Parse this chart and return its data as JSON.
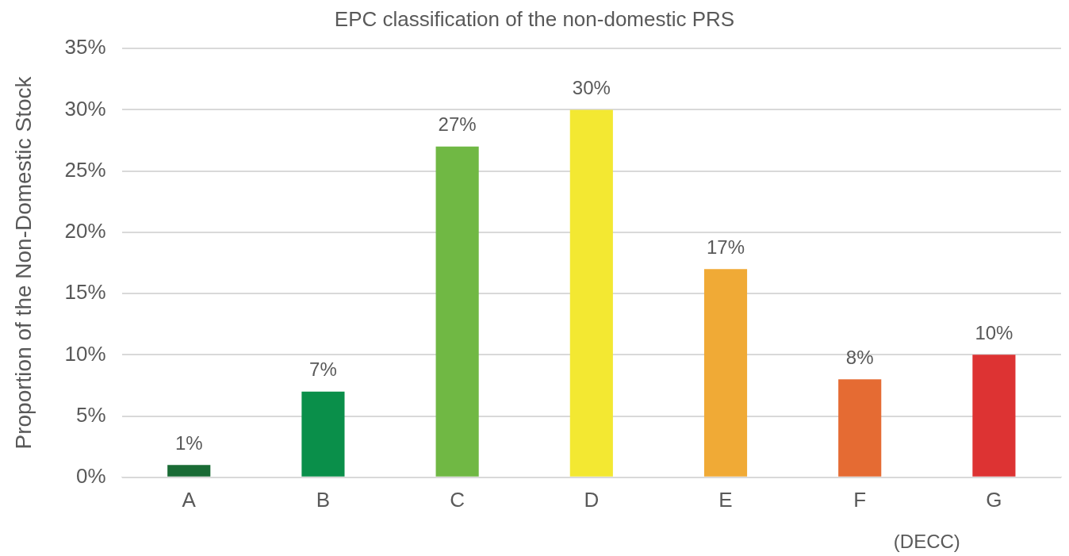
{
  "chart_data": {
    "type": "bar",
    "title": "EPC classification of the non-domestic PRS",
    "ylabel": "Proportion of the Non-Domestic Stock",
    "categories": [
      "A",
      "B",
      "C",
      "D",
      "E",
      "F",
      "G"
    ],
    "values": [
      1,
      7,
      27,
      30,
      17,
      8,
      10
    ],
    "colors": [
      "#1a6b35",
      "#0a8f4a",
      "#70b844",
      "#f3e832",
      "#f0aa36",
      "#e56b33",
      "#dd3333"
    ],
    "value_labels": [
      "1%",
      "7%",
      "27%",
      "30%",
      "17%",
      "8%",
      "10%"
    ],
    "ylim": [
      0,
      35
    ],
    "yticks": [
      {
        "value": 0,
        "label": "0%"
      },
      {
        "value": 5,
        "label": "5%"
      },
      {
        "value": 10,
        "label": "10%"
      },
      {
        "value": 15,
        "label": "15%"
      },
      {
        "value": 20,
        "label": "20%"
      },
      {
        "value": 25,
        "label": "25%"
      },
      {
        "value": 30,
        "label": "30%"
      },
      {
        "value": 35,
        "label": "35%"
      }
    ],
    "grid": "y",
    "annotations": [
      "(DECC)"
    ]
  }
}
